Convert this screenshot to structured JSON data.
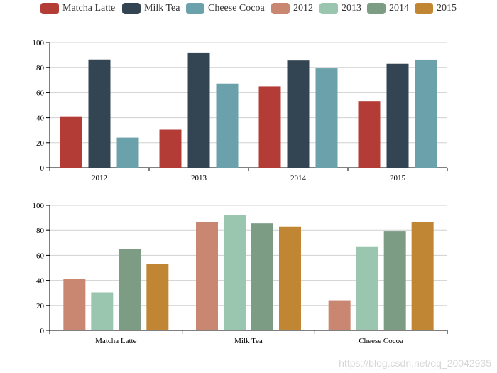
{
  "legend": {
    "items": [
      {
        "label": "Matcha Latte",
        "color": "#b43c37"
      },
      {
        "label": "Milk Tea",
        "color": "#334452"
      },
      {
        "label": "Cheese Cocoa",
        "color": "#6ba1aa"
      },
      {
        "label": "2012",
        "color": "#c98670"
      },
      {
        "label": "2013",
        "color": "#9ac6af"
      },
      {
        "label": "2014",
        "color": "#7c9d84"
      },
      {
        "label": "2015",
        "color": "#c08634"
      }
    ]
  },
  "watermark": "https://blog.csdn.net/qq_20042935",
  "chart_data": [
    {
      "type": "bar",
      "categories": [
        "2012",
        "2013",
        "2014",
        "2015"
      ],
      "series": [
        {
          "name": "Matcha Latte",
          "color": "#b43c37",
          "values": [
            41.1,
            30.4,
            65.1,
            53.3
          ]
        },
        {
          "name": "Milk Tea",
          "color": "#334452",
          "values": [
            86.5,
            92.1,
            85.7,
            83.1
          ]
        },
        {
          "name": "Cheese Cocoa",
          "color": "#6ba1aa",
          "values": [
            24.1,
            67.2,
            79.5,
            86.4
          ]
        }
      ],
      "ylim": [
        0,
        100
      ],
      "yticks": [
        0,
        20,
        40,
        60,
        80,
        100
      ],
      "grid": true,
      "legend_position": "top"
    },
    {
      "type": "bar",
      "categories": [
        "Matcha Latte",
        "Milk Tea",
        "Cheese Cocoa"
      ],
      "series": [
        {
          "name": "2012",
          "color": "#c98670",
          "values": [
            41.1,
            86.5,
            24.1
          ]
        },
        {
          "name": "2013",
          "color": "#9ac6af",
          "values": [
            30.4,
            92.1,
            67.2
          ]
        },
        {
          "name": "2014",
          "color": "#7c9d84",
          "values": [
            65.1,
            85.7,
            79.5
          ]
        },
        {
          "name": "2015",
          "color": "#c08634",
          "values": [
            53.3,
            83.1,
            86.4
          ]
        }
      ],
      "ylim": [
        0,
        100
      ],
      "yticks": [
        0,
        20,
        40,
        60,
        80,
        100
      ],
      "grid": true,
      "legend_position": "top"
    }
  ]
}
